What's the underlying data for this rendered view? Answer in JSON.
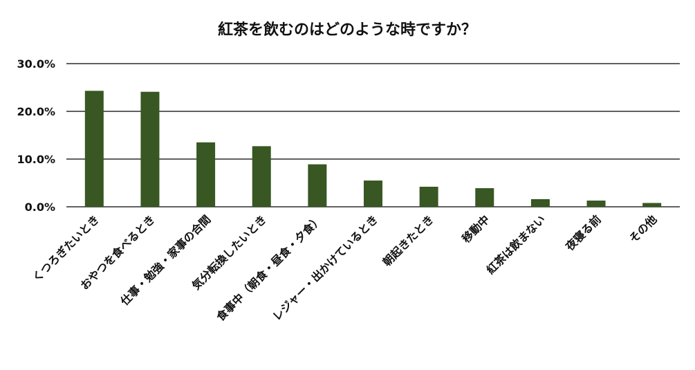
{
  "chart_data": {
    "type": "bar",
    "title": "紅茶を飲むのはどのような時ですか？",
    "categories": [
      "くつろぎたいとき",
      "おやつを食べるとき",
      "仕事・勉強・家事の合間",
      "気分転換したいとき",
      "食事中（朝食・昼食・夕食）",
      "レジャー・出かけているとき",
      "朝起きたとき",
      "移動中",
      "紅茶は飲まない",
      "夜寝る前",
      "その他"
    ],
    "values": [
      24.3,
      24.1,
      13.5,
      12.7,
      8.9,
      5.5,
      4.2,
      3.9,
      1.6,
      1.3,
      0.8
    ],
    "ylim": [
      0,
      30
    ],
    "yticks": [
      "0.0%",
      "10.0%",
      "20.0%",
      "30.0%"
    ],
    "ytick_values": [
      0,
      10,
      20,
      30
    ],
    "grid": true,
    "bar_color": "#385723",
    "legend": "none"
  }
}
